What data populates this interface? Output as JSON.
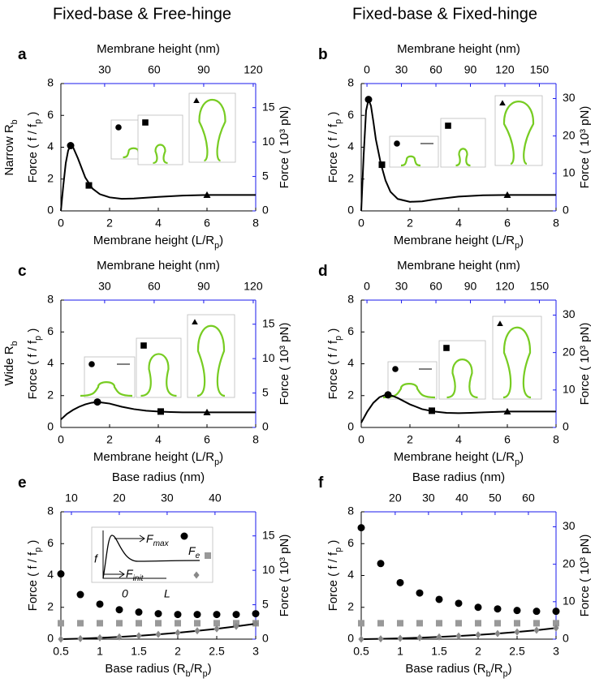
{
  "column_titles": [
    "Fixed-base & Free-hinge",
    "Fixed-base & Fixed-hinge"
  ],
  "row_labels": [
    [
      "Narrow R",
      "b"
    ],
    [
      "Wide R",
      "b"
    ]
  ],
  "chart_data": [
    {
      "type": "line",
      "panel": "a",
      "axis2_color": "#1a1aee",
      "xlabel": [
        "Membrane height (L/R",
        "p",
        ")"
      ],
      "ylabel": [
        "Force ( f / f",
        "p",
        " )"
      ],
      "x2label": "Membrane height (nm)",
      "y2label": "Force ( 10³ pN)",
      "xlim": [
        0,
        8
      ],
      "xticks": [
        0,
        2,
        4,
        6,
        8
      ],
      "ylim": [
        0,
        8
      ],
      "yticks": [
        0,
        2,
        4,
        6,
        8
      ],
      "x2lim": [
        3.5,
        121.5
      ],
      "x2ticks": [
        30,
        60,
        90,
        120
      ],
      "y2lim": [
        0,
        18.5
      ],
      "y2ticks": [
        0,
        5,
        10,
        15
      ],
      "series": [
        {
          "color": "#000000",
          "marker": "none",
          "x": [
            0,
            0.1,
            0.2,
            0.3,
            0.4,
            0.5,
            0.7,
            1.0,
            1.3,
            1.6,
            2.0,
            2.5,
            3,
            4,
            5,
            6,
            7,
            8
          ],
          "values": [
            0,
            1.6,
            3.0,
            3.8,
            4.1,
            4.0,
            3.3,
            2.1,
            1.4,
            1.05,
            0.85,
            0.76,
            0.78,
            0.88,
            0.96,
            1.0,
            1.0,
            1.0
          ]
        },
        {
          "color": "#000000",
          "marker": "circle",
          "x": [
            0.4
          ],
          "values": [
            4.1
          ]
        },
        {
          "color": "#000000",
          "marker": "square",
          "x": [
            1.15
          ],
          "values": [
            1.6
          ]
        },
        {
          "color": "#000000",
          "marker": "triangle",
          "x": [
            6
          ],
          "values": [
            1.0
          ]
        }
      ]
    },
    {
      "type": "line",
      "panel": "b",
      "axis2_color": "#1a1aee",
      "xlabel": [
        "Membrane height (L/R",
        "p",
        ")"
      ],
      "ylabel": [
        "Force ( f / f",
        "p",
        " )"
      ],
      "x2label": "Membrane height (nm)",
      "y2label": "Force ( 10³ pN)",
      "xlim": [
        0,
        8
      ],
      "xticks": [
        0,
        2,
        4,
        6,
        8
      ],
      "ylim": [
        0,
        8
      ],
      "yticks": [
        0,
        2,
        4,
        6,
        8
      ],
      "x2lim": [
        -5,
        164.5
      ],
      "x2ticks": [
        0,
        30,
        60,
        90,
        120,
        150
      ],
      "y2lim": [
        0,
        34
      ],
      "y2ticks": [
        0,
        10,
        20,
        30
      ],
      "series": [
        {
          "color": "#000000",
          "marker": "none",
          "x": [
            0,
            0.1,
            0.2,
            0.3,
            0.4,
            0.5,
            0.6,
            0.8,
            1.0,
            1.2,
            1.5,
            2.0,
            2.5,
            3,
            4,
            5,
            6,
            7,
            8
          ],
          "values": [
            0,
            3.5,
            6.3,
            7.0,
            6.6,
            5.6,
            4.5,
            3.0,
            1.9,
            1.2,
            0.75,
            0.57,
            0.6,
            0.72,
            0.9,
            0.98,
            1.0,
            1.0,
            1.0
          ]
        },
        {
          "color": "#000000",
          "marker": "circle",
          "x": [
            0.3
          ],
          "values": [
            7.0
          ]
        },
        {
          "color": "#000000",
          "marker": "square",
          "x": [
            0.85
          ],
          "values": [
            2.9
          ]
        },
        {
          "color": "#000000",
          "marker": "triangle",
          "x": [
            6
          ],
          "values": [
            1.0
          ]
        }
      ]
    },
    {
      "type": "line",
      "panel": "c",
      "axis2_color": "#1a1aee",
      "xlabel": [
        "Membrane height (L/R",
        "p",
        ")"
      ],
      "ylabel": [
        "Force ( f / f",
        "p",
        " )"
      ],
      "x2label": "Membrane height (nm)",
      "y2label": "Force ( 10³ pN)",
      "xlim": [
        0,
        8
      ],
      "xticks": [
        0,
        2,
        4,
        6,
        8
      ],
      "ylim": [
        0,
        8
      ],
      "yticks": [
        0,
        2,
        4,
        6,
        8
      ],
      "x2lim": [
        3.5,
        121.5
      ],
      "x2ticks": [
        30,
        60,
        90,
        120
      ],
      "y2lim": [
        0,
        18.5
      ],
      "y2ticks": [
        0,
        5,
        10,
        15
      ],
      "series": [
        {
          "color": "#000000",
          "marker": "none",
          "x": [
            0,
            0.25,
            0.5,
            0.75,
            1,
            1.25,
            1.5,
            2,
            2.5,
            3,
            3.5,
            4,
            4.5,
            5,
            6,
            7,
            8
          ],
          "values": [
            0.5,
            0.85,
            1.1,
            1.3,
            1.45,
            1.55,
            1.6,
            1.5,
            1.3,
            1.15,
            1.05,
            1.0,
            0.97,
            0.95,
            0.95,
            0.95,
            0.95
          ]
        },
        {
          "color": "#000000",
          "marker": "circle",
          "x": [
            1.5
          ],
          "values": [
            1.6
          ]
        },
        {
          "color": "#000000",
          "marker": "square",
          "x": [
            4.1
          ],
          "values": [
            1.0
          ]
        },
        {
          "color": "#000000",
          "marker": "triangle",
          "x": [
            6
          ],
          "values": [
            0.95
          ]
        }
      ]
    },
    {
      "type": "line",
      "panel": "d",
      "axis2_color": "#1a1aee",
      "xlabel": [
        "Membrane height (L/R",
        "p",
        ")"
      ],
      "ylabel": [
        "Force ( f / f",
        "p",
        " )"
      ],
      "x2label": "Membrane height (nm)",
      "y2label": "Force ( 10³ pN)",
      "xlim": [
        0,
        8
      ],
      "xticks": [
        0,
        2,
        4,
        6,
        8
      ],
      "ylim": [
        0,
        8
      ],
      "yticks": [
        0,
        2,
        4,
        6,
        8
      ],
      "x2lim": [
        -5,
        164.5
      ],
      "x2ticks": [
        0,
        30,
        60,
        90,
        120,
        150
      ],
      "y2lim": [
        0,
        34
      ],
      "y2ticks": [
        0,
        10,
        20,
        30
      ],
      "series": [
        {
          "color": "#000000",
          "marker": "none",
          "x": [
            0,
            0.25,
            0.5,
            0.75,
            1,
            1.25,
            1.5,
            2,
            2.5,
            3,
            3.5,
            4,
            4.5,
            5,
            6,
            7,
            8
          ],
          "values": [
            0.3,
            1.0,
            1.55,
            1.9,
            2.05,
            2.0,
            1.85,
            1.45,
            1.15,
            1.0,
            0.92,
            0.9,
            0.92,
            0.95,
            1.0,
            1.0,
            1.0
          ]
        },
        {
          "color": "#000000",
          "marker": "circle",
          "x": [
            1.1
          ],
          "values": [
            2.05
          ]
        },
        {
          "color": "#000000",
          "marker": "square",
          "x": [
            2.9
          ],
          "values": [
            1.05
          ]
        },
        {
          "color": "#000000",
          "marker": "triangle",
          "x": [
            6
          ],
          "values": [
            1.0
          ]
        }
      ]
    },
    {
      "type": "scatter",
      "panel": "e",
      "axis2_color": "#1a1aee",
      "xlabel": [
        "Base radius (R",
        "b",
        "/R",
        "p",
        ")"
      ],
      "ylabel": [
        "Force ( f / f",
        "p",
        " )"
      ],
      "x2label": "Base radius (nm)",
      "y2label": "Force ( 10³ pN)",
      "xlim": [
        0.5,
        3
      ],
      "xticks": [
        0.5,
        1,
        1.5,
        2,
        2.5,
        3
      ],
      "ylim": [
        0,
        8
      ],
      "yticks": [
        0,
        2,
        4,
        6,
        8
      ],
      "x2lim": [
        7.8,
        48.5
      ],
      "x2ticks": [
        10,
        20,
        30,
        40
      ],
      "y2lim": [
        0,
        18.5
      ],
      "y2ticks": [
        0,
        5,
        10,
        15
      ],
      "annotations": [
        [
          "F",
          "max"
        ],
        [
          "F",
          "e"
        ],
        [
          "F",
          "init"
        ],
        "f",
        "0",
        "L"
      ],
      "series": [
        {
          "color": "#000000",
          "marker": "circle",
          "x": [
            0.5,
            0.75,
            1,
            1.25,
            1.5,
            1.75,
            2,
            2.25,
            2.5,
            2.75,
            3
          ],
          "values": [
            4.1,
            2.8,
            2.2,
            1.85,
            1.7,
            1.6,
            1.55,
            1.55,
            1.55,
            1.55,
            1.6
          ]
        },
        {
          "color": "#999999",
          "marker": "square",
          "x": [
            0.5,
            0.75,
            1,
            1.25,
            1.5,
            1.75,
            2,
            2.25,
            2.5,
            2.75,
            3
          ],
          "values": [
            1.0,
            1.0,
            1.0,
            1.0,
            1.0,
            1.0,
            1.0,
            1.0,
            1.0,
            1.0,
            1.0
          ]
        },
        {
          "color": "#000000",
          "marker": "none",
          "x": [
            0.5,
            0.75,
            1,
            1.25,
            1.5,
            1.75,
            2,
            2.25,
            2.5,
            2.75,
            3
          ],
          "values": [
            0,
            0.03,
            0.08,
            0.14,
            0.21,
            0.3,
            0.4,
            0.52,
            0.65,
            0.8,
            0.97
          ]
        },
        {
          "color": "#888888",
          "marker": "diamond",
          "x": [
            0.5,
            0.75,
            1,
            1.25,
            1.5,
            1.75,
            2,
            2.25,
            2.5,
            2.75,
            3
          ],
          "values": [
            0,
            0.03,
            0.08,
            0.14,
            0.21,
            0.3,
            0.4,
            0.52,
            0.65,
            0.8,
            0.97
          ]
        }
      ]
    },
    {
      "type": "scatter",
      "panel": "f",
      "axis2_color": "#1a1aee",
      "xlabel": [
        "Base radius (R",
        "b",
        "/R",
        "p",
        ")"
      ],
      "ylabel": [
        "Force ( f / f",
        "p",
        " )"
      ],
      "x2label": "Base radius (nm)",
      "y2label": "Force ( 10³ pN)",
      "xlim": [
        0.5,
        3
      ],
      "xticks": [
        0.5,
        1,
        1.5,
        2,
        2.5,
        3
      ],
      "ylim": [
        0,
        8
      ],
      "yticks": [
        0,
        2,
        4,
        6,
        8
      ],
      "x2lim": [
        9.8,
        68.3
      ],
      "x2ticks": [
        20,
        30,
        40,
        50,
        60
      ],
      "y2lim": [
        0,
        34
      ],
      "y2ticks": [
        0,
        10,
        20,
        30
      ],
      "series": [
        {
          "color": "#000000",
          "marker": "circle",
          "x": [
            0.5,
            0.75,
            1,
            1.25,
            1.5,
            1.75,
            2,
            2.25,
            2.5,
            2.75,
            3
          ],
          "values": [
            7.0,
            4.75,
            3.55,
            2.9,
            2.5,
            2.25,
            2.0,
            1.9,
            1.8,
            1.75,
            1.75
          ]
        },
        {
          "color": "#999999",
          "marker": "square",
          "x": [
            0.5,
            0.75,
            1,
            1.25,
            1.5,
            1.75,
            2,
            2.25,
            2.5,
            2.75,
            3
          ],
          "values": [
            1.0,
            1.0,
            1.0,
            1.0,
            1.0,
            1.0,
            1.0,
            1.0,
            1.0,
            1.0,
            1.0
          ]
        },
        {
          "color": "#000000",
          "marker": "none",
          "x": [
            0.5,
            0.75,
            1,
            1.25,
            1.5,
            1.75,
            2,
            2.25,
            2.5,
            2.75,
            3
          ],
          "values": [
            0,
            0.02,
            0.05,
            0.09,
            0.14,
            0.2,
            0.27,
            0.35,
            0.45,
            0.56,
            0.7
          ]
        },
        {
          "color": "#888888",
          "marker": "diamond",
          "x": [
            0.5,
            0.75,
            1,
            1.25,
            1.5,
            1.75,
            2,
            2.25,
            2.5,
            2.75,
            3
          ],
          "values": [
            0,
            0.02,
            0.05,
            0.09,
            0.14,
            0.2,
            0.27,
            0.35,
            0.45,
            0.56,
            0.7
          ]
        }
      ]
    }
  ]
}
